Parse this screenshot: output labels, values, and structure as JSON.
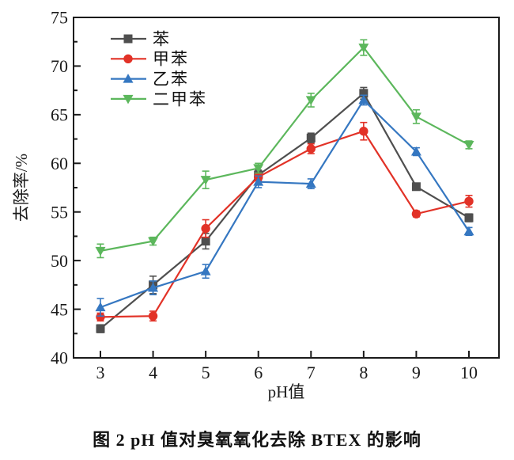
{
  "chart_data": {
    "type": "line",
    "title": "图 2  pH 值对臭氧氧化去除 BTEX 的影响",
    "xlabel": "pH值",
    "ylabel": "去除率/%",
    "x": [
      3,
      4,
      5,
      6,
      7,
      8,
      9,
      10
    ],
    "xticks": [
      3,
      4,
      5,
      6,
      7,
      8,
      9,
      10
    ],
    "yticks": [
      40,
      45,
      50,
      55,
      60,
      65,
      70,
      75
    ],
    "yminor_ticks": [
      42.5,
      47.5,
      52.5,
      57.5,
      62.5,
      67.5,
      72.5
    ],
    "ylim": [
      40,
      75
    ],
    "grid": false,
    "legend_position": "top-left-inside",
    "axis_color": "#1a1a1a",
    "series": [
      {
        "id": "benzene",
        "name": "苯",
        "marker": "square",
        "color": "#4f4f4f",
        "values": [
          43.0,
          47.5,
          52.0,
          58.8,
          62.6,
          67.2,
          57.6,
          54.4
        ],
        "errors": [
          0.4,
          0.9,
          0.8,
          0.5,
          0.5,
          0.6,
          0.3,
          0.4
        ]
      },
      {
        "id": "toluene",
        "name": "甲苯",
        "marker": "circle",
        "color": "#e23227",
        "values": [
          44.2,
          44.3,
          53.3,
          58.6,
          61.5,
          63.3,
          54.8,
          56.1
        ],
        "errors": [
          0.4,
          0.5,
          0.9,
          0.4,
          0.5,
          0.9,
          0.3,
          0.6
        ]
      },
      {
        "id": "ethylbenzene",
        "name": "乙苯",
        "marker": "triangle-up",
        "color": "#3577c1",
        "values": [
          45.2,
          47.2,
          48.9,
          58.1,
          57.9,
          66.5,
          61.2,
          53.0
        ],
        "errors": [
          0.9,
          0.7,
          0.7,
          0.6,
          0.5,
          0.5,
          0.4,
          0.4
        ]
      },
      {
        "id": "xylene",
        "name": "二甲苯",
        "marker": "triangle-down",
        "color": "#5cb75c",
        "values": [
          51.0,
          52.0,
          58.3,
          59.5,
          66.5,
          71.9,
          64.8,
          61.9
        ],
        "errors": [
          0.7,
          0.4,
          0.9,
          0.5,
          0.7,
          0.8,
          0.7,
          0.4
        ]
      }
    ]
  }
}
